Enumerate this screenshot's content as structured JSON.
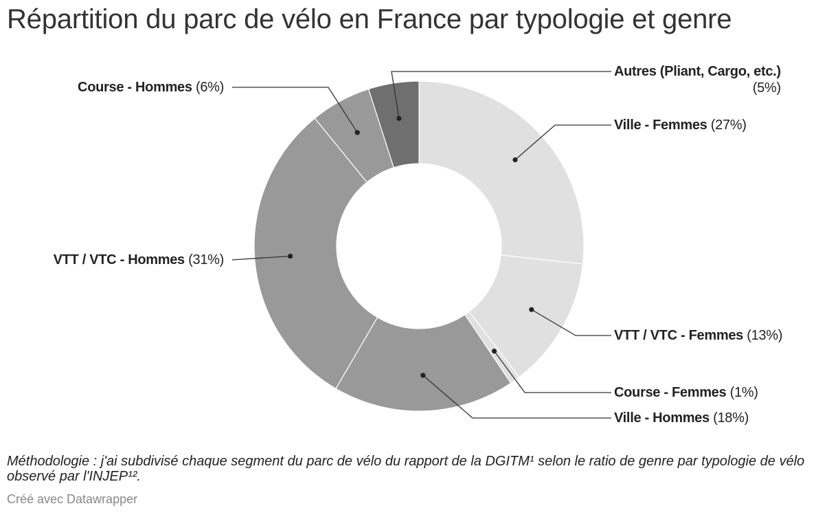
{
  "chart_data": {
    "type": "pie",
    "title": "Répartition du parc de vélo en France par typologie et genre",
    "slices": [
      {
        "name": "Ville - Femmes",
        "value": 27,
        "pct_label": "(27%)",
        "color": "#e0e0e0"
      },
      {
        "name": "VTT / VTC - Femmes",
        "value": 13,
        "pct_label": "(13%)",
        "color": "#e0e0e0"
      },
      {
        "name": "Course - Femmes",
        "value": 1,
        "pct_label": "(1%)",
        "color": "#e0e0e0"
      },
      {
        "name": "Ville - Hommes",
        "value": 18,
        "pct_label": "(18%)",
        "color": "#999999"
      },
      {
        "name": "VTT / VTC - Hommes",
        "value": 31,
        "pct_label": "(31%)",
        "color": "#999999"
      },
      {
        "name": "Course - Hommes",
        "value": 6,
        "pct_label": "(6%)",
        "color": "#999999"
      },
      {
        "name": "Autres (Pliant, Cargo, etc.)",
        "value": 5,
        "pct_label": "(5%)",
        "color": "#6f6f6f"
      }
    ]
  },
  "notes": "Méthodologie : j'ai subdivisé chaque segment du parc de vélo du rapport de la DGITM¹ selon le ratio de genre par typologie de vélo observé par l'INJEP¹².",
  "credit": "Créé avec Datawrapper"
}
